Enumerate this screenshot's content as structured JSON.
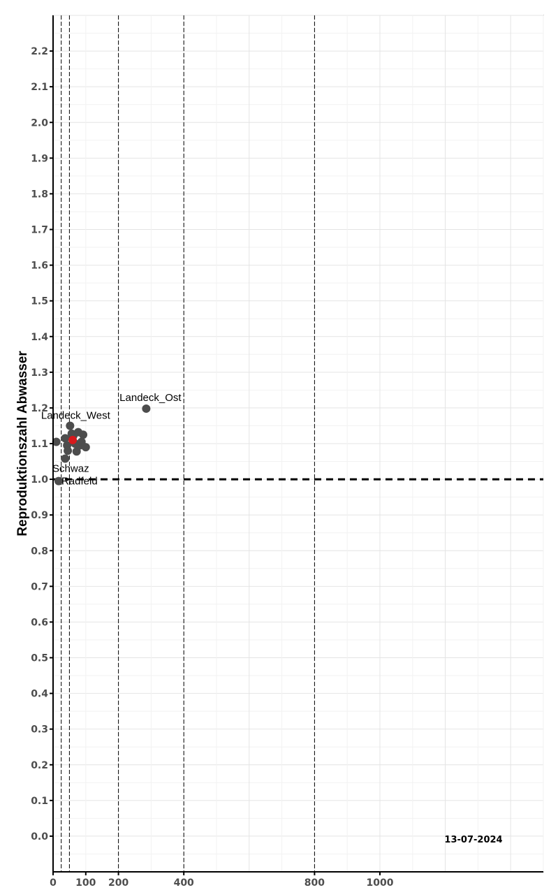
{
  "chart_data": {
    "type": "scatter",
    "title": "",
    "ylabel": "Reproduktionszahl Abwasser",
    "xlabel": "",
    "date": "13-07-2024",
    "xlim": [
      0,
      1500
    ],
    "ylim": [
      -0.1,
      2.3
    ],
    "x_ticks": [
      0,
      100,
      200,
      400,
      800,
      1000
    ],
    "y_ticks": [
      0.0,
      0.1,
      0.2,
      0.3,
      0.4,
      0.5,
      0.6,
      0.7,
      0.8,
      0.9,
      1.0,
      1.1,
      1.2,
      1.3,
      1.4,
      1.5,
      1.6,
      1.7,
      1.8,
      1.9,
      2.0,
      2.1,
      2.2
    ],
    "y_tick_labels": [
      "0.0",
      "0.1",
      "0.2",
      "0.3",
      "0.4",
      "0.5",
      "0.6",
      "0.7",
      "0.8",
      "0.9",
      "1.0",
      "1.1",
      "1.2",
      "1.3",
      "1.4",
      "1.5",
      "1.6",
      "1.7",
      "1.8",
      "1.9",
      "2.0",
      "2.1",
      "2.2"
    ],
    "vlines": [
      25,
      50,
      200,
      400,
      800
    ],
    "hline": 1.0,
    "grid": true,
    "points_color": "#4d4d4d",
    "highlight_color": "#d7191c",
    "points": [
      {
        "x": 10,
        "y": 1.105,
        "label": ""
      },
      {
        "x": 17,
        "y": 0.995,
        "label": "Radfeld"
      },
      {
        "x": 37,
        "y": 1.058,
        "label": "Schwaz"
      },
      {
        "x": 37,
        "y": 1.115,
        "label": ""
      },
      {
        "x": 43,
        "y": 1.095,
        "label": ""
      },
      {
        "x": 45,
        "y": 1.08,
        "label": ""
      },
      {
        "x": 52,
        "y": 1.15,
        "label": "Landeck_West"
      },
      {
        "x": 57,
        "y": 1.128,
        "label": ""
      },
      {
        "x": 62,
        "y": 1.122,
        "label": ""
      },
      {
        "x": 67,
        "y": 1.1,
        "label": ""
      },
      {
        "x": 72,
        "y": 1.078,
        "label": ""
      },
      {
        "x": 77,
        "y": 1.132,
        "label": ""
      },
      {
        "x": 82,
        "y": 1.095,
        "label": ""
      },
      {
        "x": 87,
        "y": 1.105,
        "label": ""
      },
      {
        "x": 92,
        "y": 1.125,
        "label": ""
      },
      {
        "x": 100,
        "y": 1.09,
        "label": ""
      },
      {
        "x": 285,
        "y": 1.198,
        "label": "Landeck_Ost"
      }
    ],
    "highlight": {
      "x": 60,
      "y": 1.11
    }
  }
}
